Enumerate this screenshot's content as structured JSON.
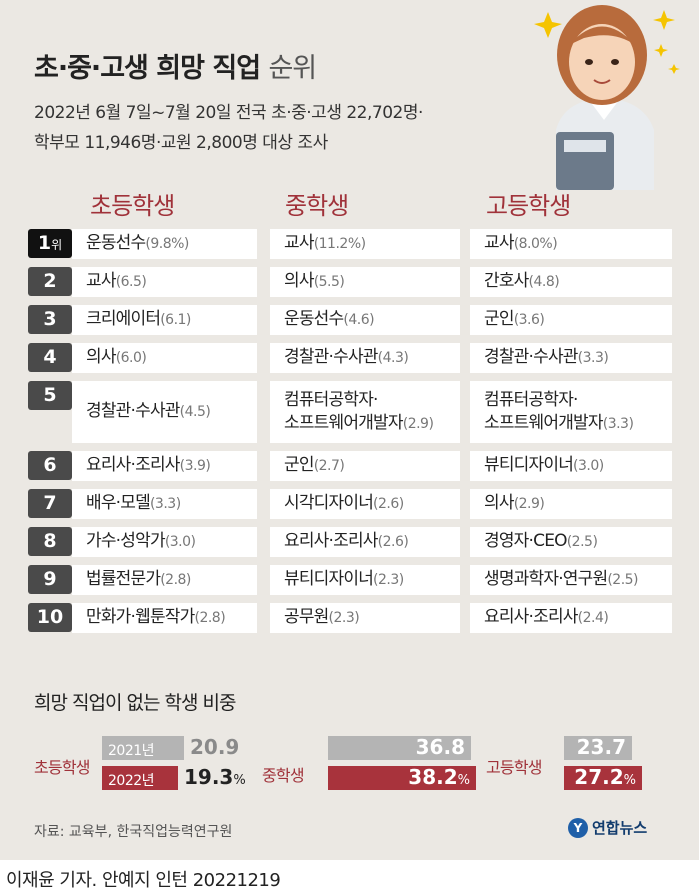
{
  "title": {
    "main": "초·중·고생 희망 직업",
    "sub": "순위"
  },
  "subtitle": {
    "line1": "2022년 6월 7일~7월 20일 전국 초·중·고생 22,702명·",
    "line2": "학부모 11,946명·교원 2,800명 대상 조사"
  },
  "colors": {
    "accent": "#a0323a",
    "bar2021": "#b4b4b4",
    "bar2022": "#a8333c",
    "background": "#ebe8e3"
  },
  "chart_data": [
    {
      "type": "table",
      "columns": [
        "초등학생",
        "중학생",
        "고등학생"
      ],
      "rank_unit": "위",
      "rows": [
        {
          "rank": "1",
          "cells": [
            {
              "job": "운동선수",
              "pct": "(9.8%)"
            },
            {
              "job": "교사",
              "pct": "(11.2%)"
            },
            {
              "job": "교사",
              "pct": "(8.0%)"
            }
          ]
        },
        {
          "rank": "2",
          "cells": [
            {
              "job": "교사",
              "pct": "(6.5)"
            },
            {
              "job": "의사",
              "pct": "(5.5)"
            },
            {
              "job": "간호사",
              "pct": "(4.8)"
            }
          ]
        },
        {
          "rank": "3",
          "cells": [
            {
              "job": "크리에이터",
              "pct": "(6.1)"
            },
            {
              "job": "운동선수",
              "pct": "(4.6)"
            },
            {
              "job": "군인",
              "pct": "(3.6)"
            }
          ]
        },
        {
          "rank": "4",
          "cells": [
            {
              "job": "의사",
              "pct": "(6.0)"
            },
            {
              "job": "경찰관·수사관",
              "pct": "(4.3)"
            },
            {
              "job": "경찰관·수사관",
              "pct": "(3.3)"
            }
          ]
        },
        {
          "rank": "5",
          "cells": [
            {
              "job": "경찰관·수사관",
              "pct": "(4.5)"
            },
            {
              "job": "컴퓨터공학자·",
              "job2": "소프트웨어개발자",
              "pct": "(2.9)"
            },
            {
              "job": "컴퓨터공학자·",
              "job2": "소프트웨어개발자",
              "pct": "(3.3)"
            }
          ]
        },
        {
          "rank": "6",
          "cells": [
            {
              "job": "요리사·조리사",
              "pct": "(3.9)"
            },
            {
              "job": "군인",
              "pct": "(2.7)"
            },
            {
              "job": "뷰티디자이너",
              "pct": "(3.0)"
            }
          ]
        },
        {
          "rank": "7",
          "cells": [
            {
              "job": "배우·모델",
              "pct": "(3.3)"
            },
            {
              "job": "시각디자이너",
              "pct": "(2.6)"
            },
            {
              "job": "의사",
              "pct": "(2.9)"
            }
          ]
        },
        {
          "rank": "8",
          "cells": [
            {
              "job": "가수·성악가",
              "pct": "(3.0)"
            },
            {
              "job": "요리사·조리사",
              "pct": "(2.6)"
            },
            {
              "job": "경영자·CEO",
              "pct": "(2.5)"
            }
          ]
        },
        {
          "rank": "9",
          "cells": [
            {
              "job": "법률전문가",
              "pct": "(2.8)"
            },
            {
              "job": "뷰티디자이너",
              "pct": "(2.3)"
            },
            {
              "job": "생명과학자·연구원",
              "pct": "(2.5)"
            }
          ]
        },
        {
          "rank": "10",
          "cells": [
            {
              "job": "만화가·웹툰작가",
              "pct": "(2.8)"
            },
            {
              "job": "공무원",
              "pct": "(2.3)"
            },
            {
              "job": "요리사·조리사",
              "pct": "(2.4)"
            }
          ]
        }
      ]
    },
    {
      "type": "bar",
      "title": "희망 직업이 없는 학생 비중",
      "categories": [
        "초등학생",
        "중학생",
        "고등학생"
      ],
      "unit": "%",
      "series": [
        {
          "name": "2021년",
          "values": [
            20.9,
            36.8,
            23.7
          ]
        },
        {
          "name": "2022년",
          "values": [
            19.3,
            38.2,
            27.2
          ]
        }
      ],
      "ylim": [
        0,
        38.2
      ]
    }
  ],
  "source": "자료: 교육부, 한국직업능력연구원",
  "logo": {
    "mark": "Y",
    "text": "연합뉴스"
  },
  "credit": "이재윤 기자. 안예지 인턴  20221219",
  "illustration": "woman-holding-book-icon"
}
